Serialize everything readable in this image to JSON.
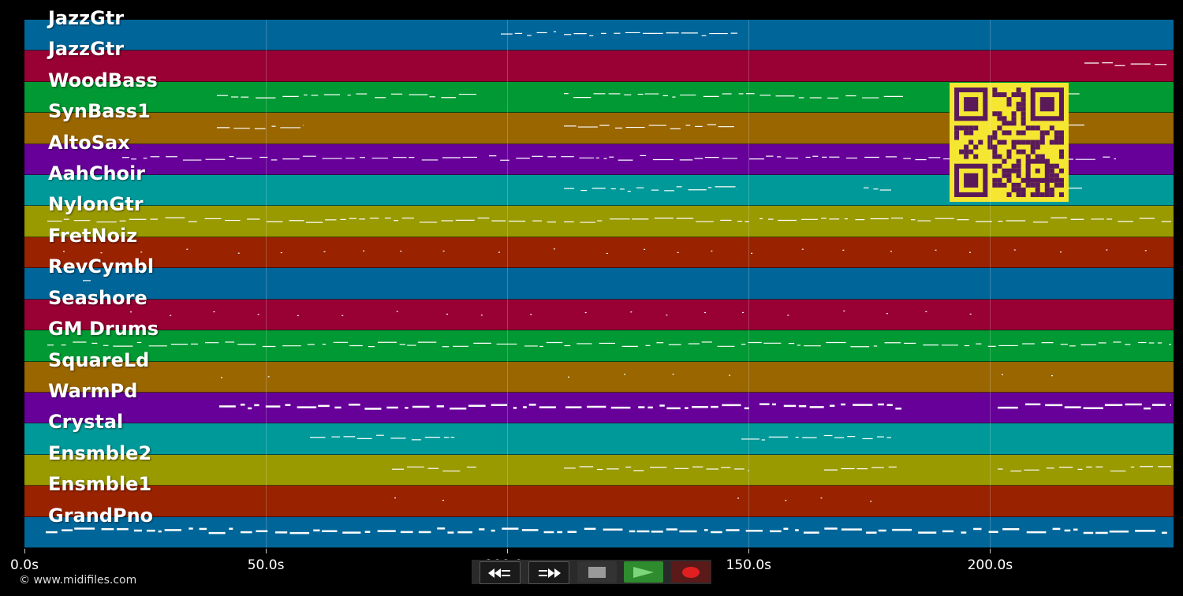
{
  "tracks": [
    {
      "label": "JazzGtr",
      "color": "#006699"
    },
    {
      "label": "JazzGtr",
      "color": "#990033"
    },
    {
      "label": "WoodBass",
      "color": "#009933"
    },
    {
      "label": "SynBass1",
      "color": "#996600"
    },
    {
      "label": "AltoSax",
      "color": "#660099"
    },
    {
      "label": "AahChoir",
      "color": "#009999"
    },
    {
      "label": "NylonGtr",
      "color": "#999900"
    },
    {
      "label": "FretNoiz",
      "color": "#992200"
    },
    {
      "label": "RevCymbl",
      "color": "#006699"
    },
    {
      "label": "Seashore",
      "color": "#990033"
    },
    {
      "label": "GM Drums",
      "color": "#009933"
    },
    {
      "label": "SquareLd",
      "color": "#996600"
    },
    {
      "label": "WarmPd",
      "color": "#660099"
    },
    {
      "label": "Crystal",
      "color": "#009999"
    },
    {
      "label": "Ensmble2",
      "color": "#999900"
    },
    {
      "label": "Ensmble1",
      "color": "#992200"
    },
    {
      "label": "GrandPno",
      "color": "#006699"
    }
  ],
  "timeline": {
    "duration_s": 238,
    "ticks": [
      {
        "t": 0,
        "label": "0.0s"
      },
      {
        "t": 50,
        "label": "50.0s"
      },
      {
        "t": 100,
        "label": "100.0s"
      },
      {
        "t": 150,
        "label": "150.0s"
      },
      {
        "t": 200,
        "label": "200.0s"
      }
    ]
  },
  "transport": {
    "buttons": [
      {
        "name": "rewind-button",
        "icon": "rewind-icon"
      },
      {
        "name": "fast-forward-button",
        "icon": "fast-forward-icon"
      },
      {
        "name": "stop-button",
        "icon": "stop-icon"
      },
      {
        "name": "play-button",
        "icon": "play-icon"
      },
      {
        "name": "record-button",
        "icon": "record-icon"
      }
    ],
    "play_color": "#2e8b2e",
    "record_color": "#e02020"
  },
  "copyright": "© www.midifiles.com",
  "qr_color": "#f4e631",
  "qr_dark": "#5a1a5a"
}
